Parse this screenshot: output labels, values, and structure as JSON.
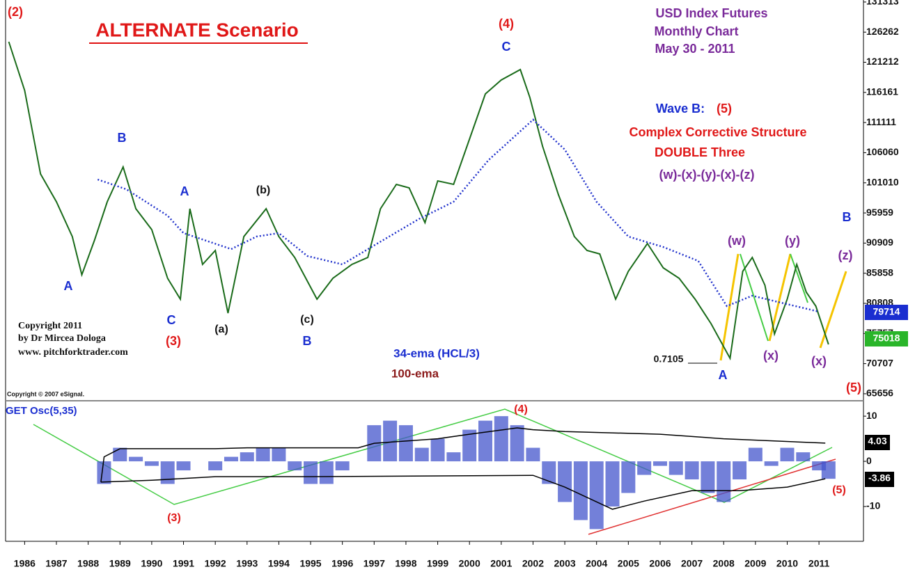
{
  "chart_data": [
    {
      "type": "line",
      "xlim": [
        1985.4,
        2012.4
      ],
      "ylim": [
        64600,
        131650
      ],
      "yticks": [
        131313,
        126262,
        121212,
        116161,
        111111,
        106060,
        101010,
        95959,
        90909,
        85858,
        80808,
        75757,
        70707,
        65656
      ],
      "series": [
        {
          "color": "#1a6b1a",
          "x": [
            1985.5,
            1986.0,
            1986.5,
            1987.0,
            1987.5,
            1987.8,
            1988.2,
            1988.6,
            1989.1,
            1989.5,
            1990.0,
            1990.5,
            1990.9,
            1991.2,
            1991.6,
            1992.0,
            1992.4,
            1992.9,
            1993.6,
            1994.0,
            1994.5,
            1995.2,
            1995.7,
            1996.3,
            1996.8,
            1997.2,
            1997.7,
            1998.1,
            1998.6,
            1999.0,
            1999.5,
            2000.0,
            2000.5,
            2001.0,
            2001.6,
            2001.9,
            2002.3,
            2002.8,
            2003.3,
            2003.7,
            2004.1,
            2004.6,
            2005.0,
            2005.6,
            2006.1,
            2006.6,
            2007.1,
            2007.6,
            2008.2,
            2008.6,
            2008.9,
            2009.3,
            2009.6,
            2010.0,
            2010.3,
            2010.6,
            2010.9,
            2011.3
          ],
          "values": [
            124654,
            116492,
            102500,
            97836,
            92006,
            85593,
            91423,
            97836,
            103666,
            96670,
            93172,
            85010,
            81512,
            96670,
            87342,
            89674,
            79180,
            92006,
            96670,
            92006,
            88508,
            81512,
            85010,
            87342,
            88508,
            96670,
            100751,
            100168,
            94339,
            101334,
            100751,
            108330,
            115909,
            118241,
            119990,
            115326,
            107164,
            98998,
            92006,
            89674,
            89091,
            81512,
            86176,
            90840,
            86759,
            85010,
            81512,
            77431,
            71600,
            86176,
            88508,
            83844,
            75682,
            81512,
            87342,
            82678,
            80346,
            73932
          ]
        },
        {
          "color": "#2233cc",
          "x": [
            1988.3,
            1989.2,
            1990.5,
            1991.0,
            1992.5,
            1993.3,
            1994.0,
            1994.9,
            1996.0,
            1997.1,
            1998.4,
            1999.5,
            2000.6,
            2002.0,
            2003.0,
            2004.0,
            2005.0,
            2006.1,
            2007.2,
            2008.1,
            2008.9,
            2009.8,
            2011.0
          ],
          "values": [
            101567,
            99935,
            95504,
            92589,
            89907,
            92006,
            92589,
            88741,
            87342,
            90840,
            94921,
            97836,
            104832,
            111595,
            106581,
            97836,
            92006,
            90257,
            87925,
            80346,
            82095,
            80929,
            79413
          ]
        }
      ]
    },
    {
      "type": "bar",
      "xlim": [
        1985.4,
        2012.4
      ],
      "ylim": [
        -17.7,
        13.1
      ],
      "yticks": [
        10,
        0,
        -10
      ],
      "xticks": [
        1986,
        1987,
        1988,
        1989,
        1990,
        1991,
        1992,
        1993,
        1994,
        1995,
        1996,
        1997,
        1998,
        1999,
        2000,
        2001,
        2002,
        2003,
        2004,
        2005,
        2006,
        2007,
        2008,
        2009,
        2010,
        2011
      ],
      "color": "#4455cc",
      "x": [
        1988.5,
        1989.0,
        1989.5,
        1990.0,
        1990.5,
        1991.0,
        1991.5,
        1992.0,
        1992.5,
        1993.0,
        1993.5,
        1994.0,
        1994.5,
        1995.0,
        1995.5,
        1996.0,
        1996.5,
        1997.0,
        1997.5,
        1998.0,
        1998.5,
        1999.0,
        1999.5,
        2000.0,
        2000.5,
        2001.0,
        2001.5,
        2002.0,
        2002.5,
        2003.0,
        2003.5,
        2004.0,
        2004.5,
        2005.0,
        2005.5,
        2006.0,
        2006.5,
        2007.0,
        2007.5,
        2008.0,
        2008.5,
        2009.0,
        2009.5,
        2010.0,
        2010.5,
        2011.0,
        2011.3
      ],
      "values": [
        -5,
        3,
        1,
        -1,
        -5,
        -2,
        0,
        -2,
        1,
        2,
        3,
        3,
        -2,
        -5,
        -5,
        -2,
        0,
        8,
        9,
        8,
        3,
        5,
        2,
        7,
        9,
        10,
        8,
        3,
        -5,
        -9,
        -13,
        -15,
        -10,
        -7,
        -3,
        -1,
        -3,
        -4,
        -7,
        -9,
        -4,
        3,
        -1,
        3,
        2,
        -2,
        -3.86
      ],
      "bands": [
        {
          "color": "#000000",
          "x": [
            1988.4,
            1988.5,
            1989.0,
            1992.0,
            1993.0,
            1996.5,
            1997.0,
            1999.0,
            2000.0,
            2001.5,
            2002.0,
            2003.0,
            2006.0,
            2008.0,
            2011.2
          ],
          "values": [
            -4.6,
            1,
            2.8,
            2.8,
            3,
            3,
            4,
            5,
            6,
            7.4,
            7,
            6.6,
            6,
            5,
            4.03
          ]
        },
        {
          "color": "#000000",
          "x": [
            1988.4,
            1990.0,
            1992.0,
            1995.0,
            2002.0,
            2003.0,
            2004.5,
            2005.5,
            2007.0,
            2008.5,
            2010.0,
            2011.2
          ],
          "values": [
            -4.6,
            -4.2,
            -3.4,
            -3.4,
            -3.1,
            -5.7,
            -10.6,
            -8.8,
            -6.5,
            -6.5,
            -5.7,
            -3.86
          ]
        }
      ]
    }
  ],
  "annotations": [
    "(2)",
    "ALTERNATE Scenario",
    "(4)",
    "C",
    "USD Index Futures",
    "Monthly Chart",
    "May 30 - 2011",
    "Wave B:",
    "(5)",
    "Complex Corrective Structure",
    "DOUBLE Three",
    "(w)-(x)-(y)-(x)-(z)",
    "B",
    "(z)",
    "(w)",
    "(y)",
    "(x)",
    "(x)",
    "A",
    "0.7105",
    "(5)",
    "B",
    "A",
    "(b)",
    "A",
    "C",
    "(3)",
    "(a)",
    "(c)",
    "B",
    "34-ema (HCL/3)",
    "100-ema",
    "Copyright 2011",
    "by Dr Mircea Dologa",
    "www. pitchforktrader.com",
    "Copyright © 2007 eSignal.",
    "GET Osc(5,35)",
    "(4)",
    "(3)",
    "(5)",
    "79714",
    "75018",
    "4.03",
    "-3.86"
  ]
}
